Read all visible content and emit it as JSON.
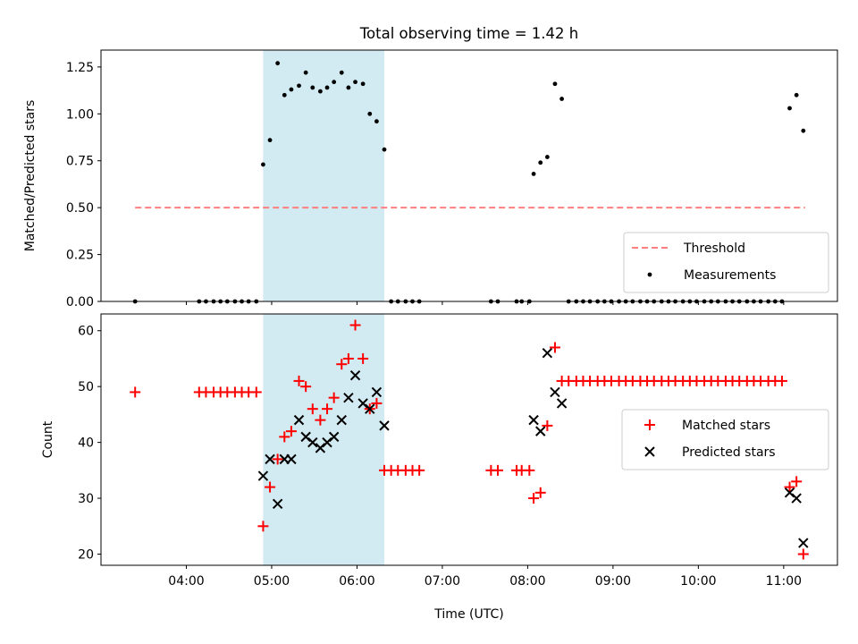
{
  "title": "Total observing time = 1.42 h",
  "colors": {
    "shade": "#add8e6",
    "threshold": "#ff7f7f",
    "measurement": "#000000",
    "matched": "#ff0000",
    "predicted": "#000000"
  },
  "chart_data": [
    {
      "type": "scatter",
      "panel": "top",
      "ylabel": "Matched/Predicted stars",
      "xlabel": "",
      "x_unit": "hours UTC",
      "xlim": [
        3.0,
        11.63
      ],
      "ylim": [
        0.0,
        1.34
      ],
      "yticks": [
        0.0,
        0.25,
        0.5,
        0.75,
        1.0,
        1.25
      ],
      "ytick_labels": [
        "0.00",
        "0.25",
        "0.50",
        "0.75",
        "1.00",
        "1.25"
      ],
      "shaded_span": [
        4.9,
        6.32
      ],
      "threshold": {
        "name": "Threshold",
        "y": 0.5,
        "x_range": [
          3.4,
          11.25
        ]
      },
      "legend_position": "lower-right",
      "series": [
        {
          "name": "Measurements",
          "x": [
            3.4,
            4.15,
            4.23,
            4.32,
            4.4,
            4.48,
            4.57,
            4.65,
            4.73,
            4.82,
            4.9,
            4.98,
            5.07,
            5.15,
            5.23,
            5.32,
            5.4,
            5.48,
            5.57,
            5.65,
            5.73,
            5.82,
            5.9,
            5.98,
            6.07,
            6.15,
            6.23,
            6.32,
            6.4,
            6.48,
            6.57,
            6.65,
            6.73,
            7.57,
            7.65,
            7.87,
            7.93,
            8.02,
            8.07,
            8.15,
            8.23,
            8.32,
            8.4,
            8.48,
            8.57,
            8.65,
            8.73,
            8.82,
            8.9,
            8.98,
            9.07,
            9.15,
            9.23,
            9.32,
            9.4,
            9.48,
            9.57,
            9.65,
            9.73,
            9.82,
            9.9,
            9.98,
            10.07,
            10.15,
            10.23,
            10.32,
            10.4,
            10.48,
            10.57,
            10.65,
            10.73,
            10.82,
            10.9,
            10.98,
            11.07,
            11.15,
            11.23
          ],
          "y": [
            0,
            0,
            0,
            0,
            0,
            0,
            0,
            0,
            0,
            0,
            0.73,
            0.86,
            1.27,
            1.1,
            1.13,
            1.15,
            1.22,
            1.14,
            1.12,
            1.14,
            1.17,
            1.22,
            1.14,
            1.17,
            1.16,
            1.0,
            0.96,
            0.81,
            0,
            0,
            0,
            0,
            0,
            0,
            0,
            0,
            0,
            0,
            0.68,
            0.74,
            0.77,
            1.16,
            1.08,
            0,
            0,
            0,
            0,
            0,
            0,
            0,
            0,
            0,
            0,
            0,
            0,
            0,
            0,
            0,
            0,
            0,
            0,
            0,
            0,
            0,
            0,
            0,
            0,
            0,
            0,
            0,
            0,
            0,
            0,
            0,
            1.03,
            1.1,
            0.91
          ]
        }
      ]
    },
    {
      "type": "scatter",
      "panel": "bottom",
      "ylabel": "Count",
      "xlabel": "Time (UTC)",
      "x_unit": "hours UTC",
      "xlim": [
        3.0,
        11.63
      ],
      "ylim": [
        18.0,
        63.0
      ],
      "yticks": [
        20,
        30,
        40,
        50,
        60
      ],
      "ytick_labels": [
        "20",
        "30",
        "40",
        "50",
        "60"
      ],
      "xticks": [
        4,
        5,
        6,
        7,
        8,
        9,
        10,
        11
      ],
      "xtick_labels": [
        "04:00",
        "05:00",
        "06:00",
        "07:00",
        "08:00",
        "09:00",
        "10:00",
        "11:00"
      ],
      "shaded_span": [
        4.9,
        6.32
      ],
      "legend_position": "right",
      "series": [
        {
          "name": "Matched stars",
          "marker": "plus",
          "x": [
            3.4,
            4.15,
            4.23,
            4.32,
            4.4,
            4.48,
            4.57,
            4.65,
            4.73,
            4.82,
            4.9,
            4.98,
            5.07,
            5.15,
            5.23,
            5.32,
            5.4,
            5.48,
            5.57,
            5.65,
            5.73,
            5.82,
            5.9,
            5.98,
            6.07,
            6.15,
            6.23,
            6.32,
            6.4,
            6.48,
            6.57,
            6.65,
            6.73,
            7.57,
            7.65,
            7.87,
            7.93,
            8.02,
            8.07,
            8.15,
            8.23,
            8.32,
            8.4,
            8.48,
            8.57,
            8.65,
            8.73,
            8.82,
            8.9,
            8.98,
            9.07,
            9.15,
            9.23,
            9.32,
            9.4,
            9.48,
            9.57,
            9.65,
            9.73,
            9.82,
            9.9,
            9.98,
            10.07,
            10.15,
            10.23,
            10.32,
            10.4,
            10.48,
            10.57,
            10.65,
            10.73,
            10.82,
            10.9,
            10.98,
            11.07,
            11.15,
            11.23
          ],
          "y": [
            49,
            49,
            49,
            49,
            49,
            49,
            49,
            49,
            49,
            49,
            25,
            32,
            37,
            41,
            42,
            51,
            50,
            46,
            44,
            46,
            48,
            54,
            55,
            61,
            55,
            46,
            47,
            35,
            35,
            35,
            35,
            35,
            35,
            35,
            35,
            35,
            35,
            35,
            30,
            31,
            43,
            57,
            51,
            51,
            51,
            51,
            51,
            51,
            51,
            51,
            51,
            51,
            51,
            51,
            51,
            51,
            51,
            51,
            51,
            51,
            51,
            51,
            51,
            51,
            51,
            51,
            51,
            51,
            51,
            51,
            51,
            51,
            51,
            51,
            32,
            33,
            20
          ]
        },
        {
          "name": "Predicted stars",
          "marker": "x",
          "x": [
            4.9,
            4.98,
            5.07,
            5.15,
            5.23,
            5.32,
            5.4,
            5.48,
            5.57,
            5.65,
            5.73,
            5.82,
            5.9,
            5.98,
            6.07,
            6.15,
            6.23,
            6.32,
            8.07,
            8.15,
            8.23,
            8.32,
            8.4,
            11.07,
            11.15,
            11.23
          ],
          "y": [
            34,
            37,
            29,
            37,
            37,
            44,
            41,
            40,
            39,
            40,
            41,
            44,
            48,
            52,
            47,
            46,
            49,
            43,
            44,
            42,
            56,
            49,
            47,
            31,
            30,
            22
          ]
        }
      ]
    }
  ]
}
